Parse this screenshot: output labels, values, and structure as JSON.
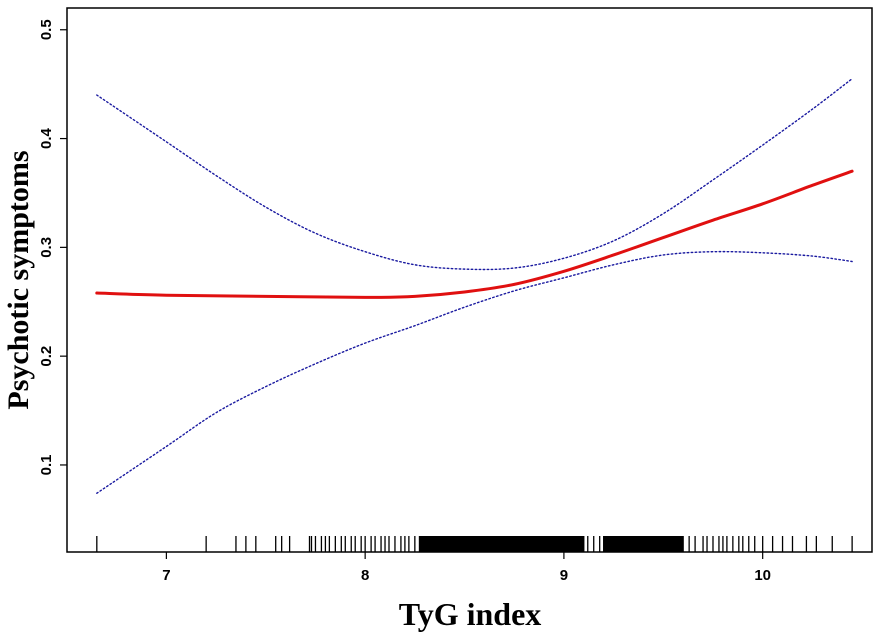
{
  "chart_data": {
    "type": "line",
    "xlabel": "TyG index",
    "ylabel": "Psychotic symptoms",
    "xlim": [
      6.5,
      10.55
    ],
    "ylim": [
      0.02,
      0.52
    ],
    "x_ticks": [
      7,
      8,
      9,
      10
    ],
    "y_ticks": [
      0.1,
      0.2,
      0.3,
      0.4,
      0.5
    ],
    "x_tick_labels": [
      "7",
      "8",
      "9",
      "10"
    ],
    "y_tick_labels": [
      "0.1",
      "0.2",
      "0.3",
      "0.4",
      "0.5"
    ],
    "grid": false,
    "legend": "none",
    "colors": {
      "estimate": "#e01010",
      "confidence": "#1a1aa0",
      "rug": "#000000",
      "frame": "#000000"
    },
    "series": [
      {
        "style": "solid",
        "x": [
          6.65,
          7.0,
          7.5,
          8.0,
          8.25,
          8.5,
          8.75,
          9.0,
          9.25,
          9.5,
          9.75,
          10.0,
          10.25,
          10.45
        ],
        "y": [
          0.258,
          0.256,
          0.255,
          0.254,
          0.255,
          0.259,
          0.266,
          0.278,
          0.293,
          0.309,
          0.325,
          0.34,
          0.357,
          0.37
        ]
      },
      {
        "style": "dotted",
        "x": [
          6.65,
          7.0,
          7.25,
          7.5,
          7.75,
          8.0,
          8.25,
          8.5,
          8.75,
          9.0,
          9.25,
          9.5,
          9.75,
          10.0,
          10.25,
          10.45
        ],
        "y": [
          0.44,
          0.397,
          0.366,
          0.337,
          0.313,
          0.296,
          0.284,
          0.28,
          0.281,
          0.29,
          0.306,
          0.331,
          0.362,
          0.394,
          0.427,
          0.455
        ]
      },
      {
        "style": "dotted",
        "x": [
          6.65,
          7.0,
          7.25,
          7.5,
          7.75,
          8.0,
          8.25,
          8.5,
          8.75,
          9.0,
          9.25,
          9.5,
          9.75,
          10.0,
          10.25,
          10.45
        ],
        "y": [
          0.074,
          0.117,
          0.148,
          0.172,
          0.193,
          0.212,
          0.228,
          0.245,
          0.26,
          0.272,
          0.284,
          0.293,
          0.296,
          0.295,
          0.292,
          0.287
        ]
      }
    ],
    "rug": {
      "x": [
        6.65,
        7.2,
        7.35,
        7.4,
        7.45,
        7.55,
        7.58,
        7.62,
        7.72,
        7.73,
        7.75,
        7.78,
        7.8,
        7.82,
        7.85,
        7.88,
        7.9,
        7.93,
        7.95,
        7.98,
        8.0,
        8.03,
        8.05,
        8.08,
        8.1,
        8.12,
        8.15,
        8.18,
        8.2,
        8.22,
        8.25,
        8.28,
        8.3,
        8.33,
        9.1,
        9.12,
        9.15,
        9.18,
        9.2,
        9.22,
        9.25,
        9.28,
        9.3,
        9.33,
        9.35,
        9.38,
        9.4,
        9.42,
        9.45,
        9.48,
        9.5,
        9.52,
        9.55,
        9.58,
        9.6,
        9.63,
        9.66,
        9.7,
        9.72,
        9.75,
        9.78,
        9.8,
        9.82,
        9.85,
        9.88,
        9.9,
        9.93,
        9.96,
        10.0,
        10.05,
        10.1,
        10.15,
        10.22,
        10.27,
        10.35,
        10.45
      ],
      "dense_ranges": [
        [
          8.27,
          9.1
        ],
        [
          9.2,
          9.6
        ]
      ]
    }
  }
}
